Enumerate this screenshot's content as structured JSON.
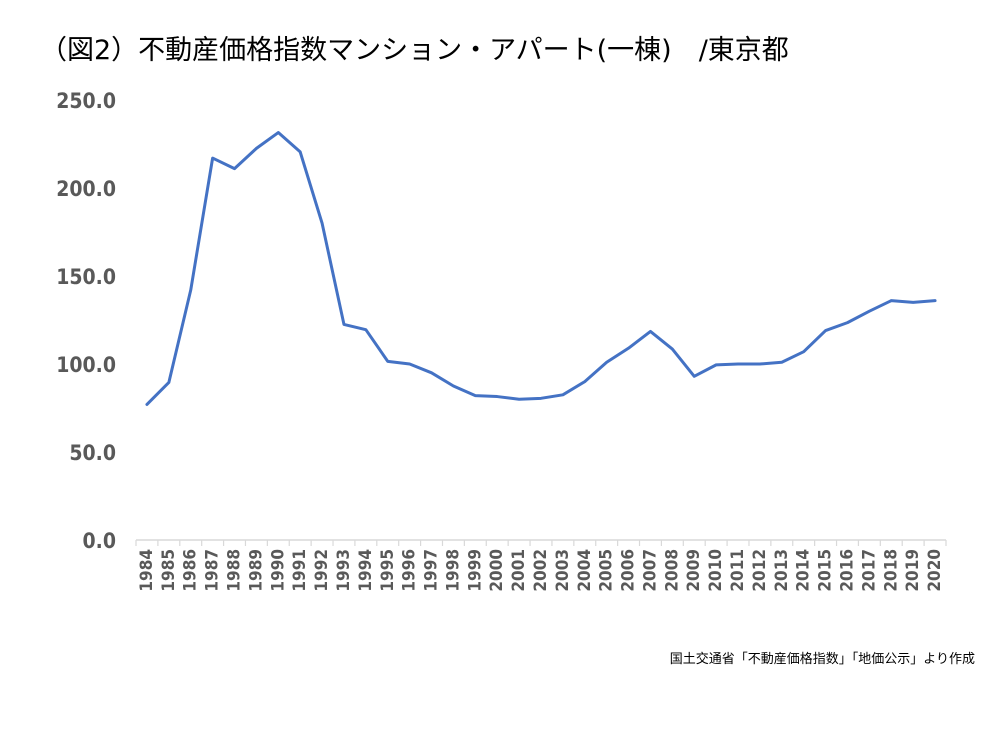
{
  "chart_data": {
    "type": "line",
    "title": "（図2）不動産価格指数マンション・アパート(一棟)　/東京都",
    "xlabel": "",
    "ylabel": "",
    "ylim": [
      0,
      250
    ],
    "y_ticks": [
      "0.0",
      "50.0",
      "100.0",
      "150.0",
      "200.0",
      "250.0"
    ],
    "grid": false,
    "legend": "none",
    "x": [
      "1984",
      "1985",
      "1986",
      "1987",
      "1988",
      "1989",
      "1990",
      "1991",
      "1992",
      "1993",
      "1994",
      "1995",
      "1996",
      "1997",
      "1998",
      "1999",
      "2000",
      "2001",
      "2002",
      "2003",
      "2004",
      "2005",
      "2006",
      "2007",
      "2008",
      "2009",
      "2010",
      "2011",
      "2012",
      "2013",
      "2014",
      "2015",
      "2016",
      "2017",
      "2018",
      "2019",
      "2020"
    ],
    "series": [
      {
        "values": [
          77.0,
          89.5,
          142.0,
          217.0,
          211.0,
          222.5,
          231.5,
          220.5,
          180.0,
          122.5,
          119.5,
          101.5,
          100.0,
          95.0,
          87.5,
          82.0,
          81.5,
          80.0,
          80.5,
          82.5,
          90.0,
          101.0,
          109.0,
          118.5,
          108.5,
          93.0,
          99.5,
          100.0,
          100.0,
          101.0,
          107.0,
          119.0,
          123.5,
          130.0,
          136.0,
          135.0,
          136.0
        ]
      }
    ],
    "line_color": "#4472C4",
    "axis_color": "#D9D9D9",
    "tick_label_color": "#595959"
  },
  "source": "国土交通省「不動産価格指数」「地価公示」より作成"
}
